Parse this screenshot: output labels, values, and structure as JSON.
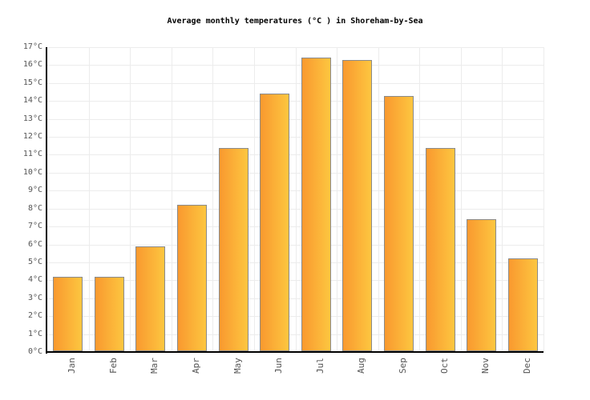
{
  "chart_data": {
    "type": "bar",
    "title": "Average monthly temperatures (°C ) in Shoreham-by-Sea",
    "categories": [
      "Jan",
      "Feb",
      "Mar",
      "Apr",
      "May",
      "Jun",
      "Jul",
      "Aug",
      "Sep",
      "Oct",
      "Nov",
      "Dec"
    ],
    "values": [
      4.2,
      4.2,
      5.9,
      8.2,
      11.4,
      14.4,
      16.4,
      16.3,
      14.3,
      11.4,
      7.4,
      5.2
    ],
    "unit": "°C",
    "xlabel": "",
    "ylabel": "",
    "ylim": [
      0,
      17
    ],
    "ytick_step": 1,
    "ytick_labels": [
      "0°C",
      "1°C",
      "2°C",
      "3°C",
      "4°C",
      "5°C",
      "6°C",
      "7°C",
      "8°C",
      "9°C",
      "10°C",
      "11°C",
      "12°C",
      "13°C",
      "14°C",
      "15°C",
      "16°C",
      "17°C"
    ],
    "grid": true,
    "legend": null,
    "colors": {
      "background": "#ffffff",
      "bar_gradient_left": "#f9992f",
      "bar_gradient_right": "#fdc640",
      "bar_border": "#8a8a8a",
      "grid": "#ececec",
      "axis": "#000000",
      "tick_label": "#555555",
      "title": "#000000"
    }
  }
}
